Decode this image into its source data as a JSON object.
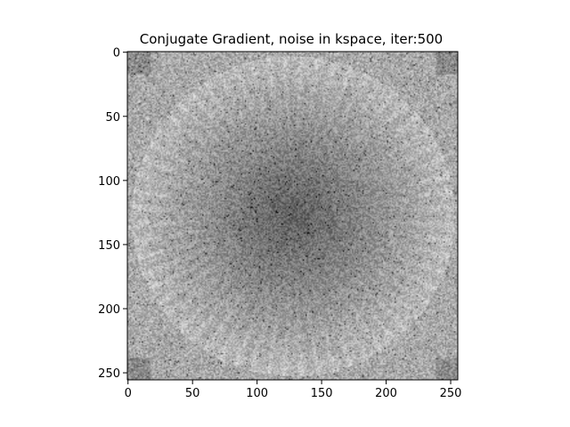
{
  "chart_data": {
    "type": "heatmap",
    "title": "Conjugate Gradient, noise in kspace, iter:500",
    "xlabel": "",
    "ylabel": "",
    "xlim": [
      0,
      255
    ],
    "ylim": [
      255,
      0
    ],
    "x_ticks": [
      0,
      50,
      100,
      150,
      200,
      250
    ],
    "y_ticks": [
      0,
      50,
      100,
      150,
      200,
      250
    ],
    "image_size": [
      256,
      256
    ],
    "colormap": "gray",
    "grid": false,
    "colors": {
      "background": "#ffffff",
      "axis": "#000000"
    }
  }
}
